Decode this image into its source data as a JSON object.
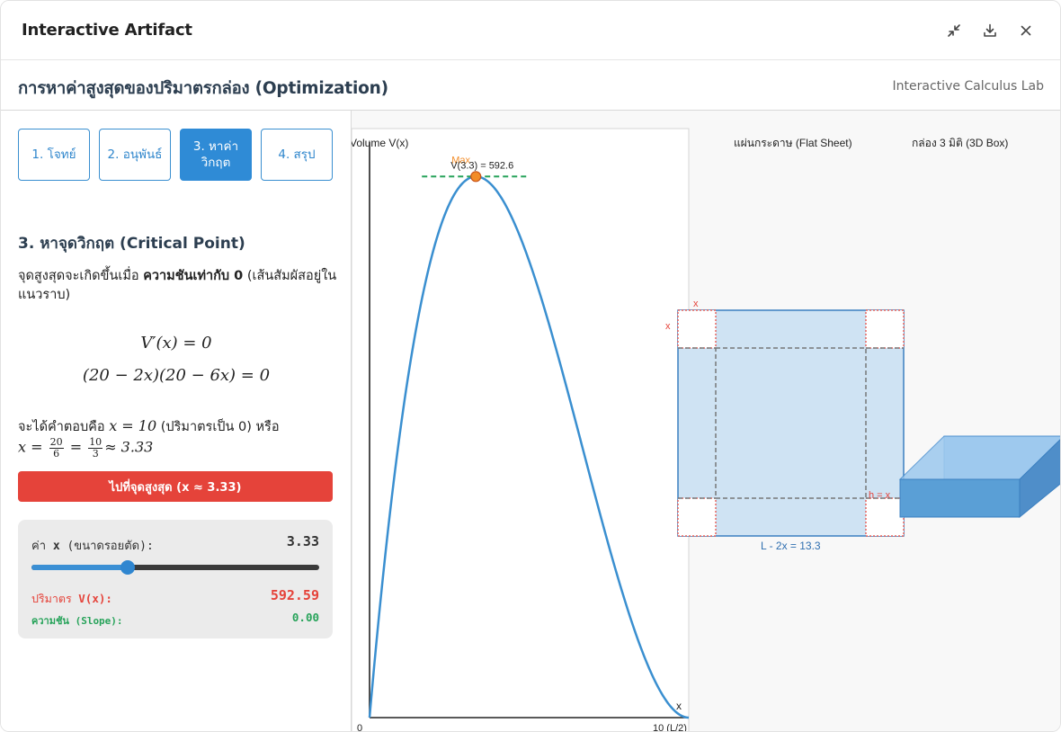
{
  "window": {
    "title": "Interactive Artifact",
    "controls": [
      {
        "name": "minimize",
        "icon": "collapse-arrows-icon"
      },
      {
        "name": "download",
        "icon": "download-icon"
      },
      {
        "name": "close",
        "icon": "close-icon"
      }
    ]
  },
  "header": {
    "title": "การหาค่าสูงสุดของปริมาตรกล่อง (Optimization)",
    "subtitle": "Interactive Calculus Lab"
  },
  "tabs": [
    {
      "label": "1. โจทย์",
      "active": false
    },
    {
      "label": "2. อนุพันธ์",
      "active": false
    },
    {
      "label": "3. หาค่าวิกฤต",
      "active": true
    },
    {
      "label": "4. สรุป",
      "active": false
    }
  ],
  "step": {
    "title": "3. หาจุดวิกฤต (Critical Point)",
    "desc_prefix": "จุดสูงสุดจะเกิดขึ้นเมื่อ ",
    "desc_bold": "ความชันเท่ากับ 0",
    "desc_suffix": " (เส้นสัมผัสอยู่ในแนวราบ)",
    "eq1": "V′(x) = 0",
    "eq2": "(20 − 2x)(20 − 6x) = 0",
    "answer_prefix": "จะได้คำตอบคือ ",
    "answer_root1": "x = 10",
    "answer_mid": " (ปริมาตรเป็น 0) หรือ",
    "answer_x": "x = ",
    "frac1_num": "20",
    "frac1_den": "6",
    "frac2_num": "10",
    "frac2_den": "3",
    "approx": "≈ 3.33"
  },
  "go_button": "ไปที่จุดสูงสุด (x ≈ 3.33)",
  "controls": {
    "x_label_prefix": "ค่า ",
    "x_label_var": "x",
    "x_label_suffix": " (ขนาดรอยตัด):",
    "x_value": "3.33",
    "slider_fraction": 0.333,
    "volume_label_prefix": "ปริมาตร ",
    "volume_label_var": "V(x):",
    "volume_value": "592.59",
    "slope_label": "ความชัน (Slope):",
    "slope_value": "0.00"
  },
  "graph": {
    "ylabel": "Volume V(x)",
    "xlabel": "x",
    "x_start_tick": "0",
    "x_end_tick": "10 (L/2)",
    "max_label": "Max",
    "point_label": "V(3.3) = 592.6",
    "curve_color": "#3a8fd0",
    "point_color": "#f28c28",
    "tangent_color": "#27a35a"
  },
  "chart_data": {
    "type": "line",
    "function": "V(x) = x(20 - 2x)^2",
    "xlim": [
      0,
      10
    ],
    "ylim": [
      0,
      650
    ],
    "x": [
      0,
      0.5,
      1,
      1.5,
      2,
      2.5,
      3,
      3.33,
      3.5,
      4,
      4.5,
      5,
      5.5,
      6,
      6.5,
      7,
      7.5,
      8,
      8.5,
      9,
      9.5,
      10
    ],
    "series": [
      {
        "values": [
          0,
          180.5,
          324,
          433.5,
          512,
          562.5,
          588,
          592.59,
          591.5,
          576,
          544.5,
          500,
          445.5,
          384,
          318.5,
          252,
          187.5,
          128,
          76.5,
          36,
          9.5,
          0
        ]
      }
    ],
    "highlight": {
      "x": 3.33,
      "y": 592.59
    }
  },
  "sheet": {
    "title": "แผ่นกระดาษ (Flat Sheet)",
    "cut_label_top": "x",
    "cut_label_left": "x",
    "height_label": "h = x",
    "base_label": "L - 2x = 13.3",
    "sheet_color": "#cfe3f3",
    "border_color": "#3a7fc0",
    "cut_color": "#e5433a"
  },
  "box3d": {
    "title": "กล่อง 3 มิติ (3D Box)",
    "color": "#5a9fd6"
  }
}
